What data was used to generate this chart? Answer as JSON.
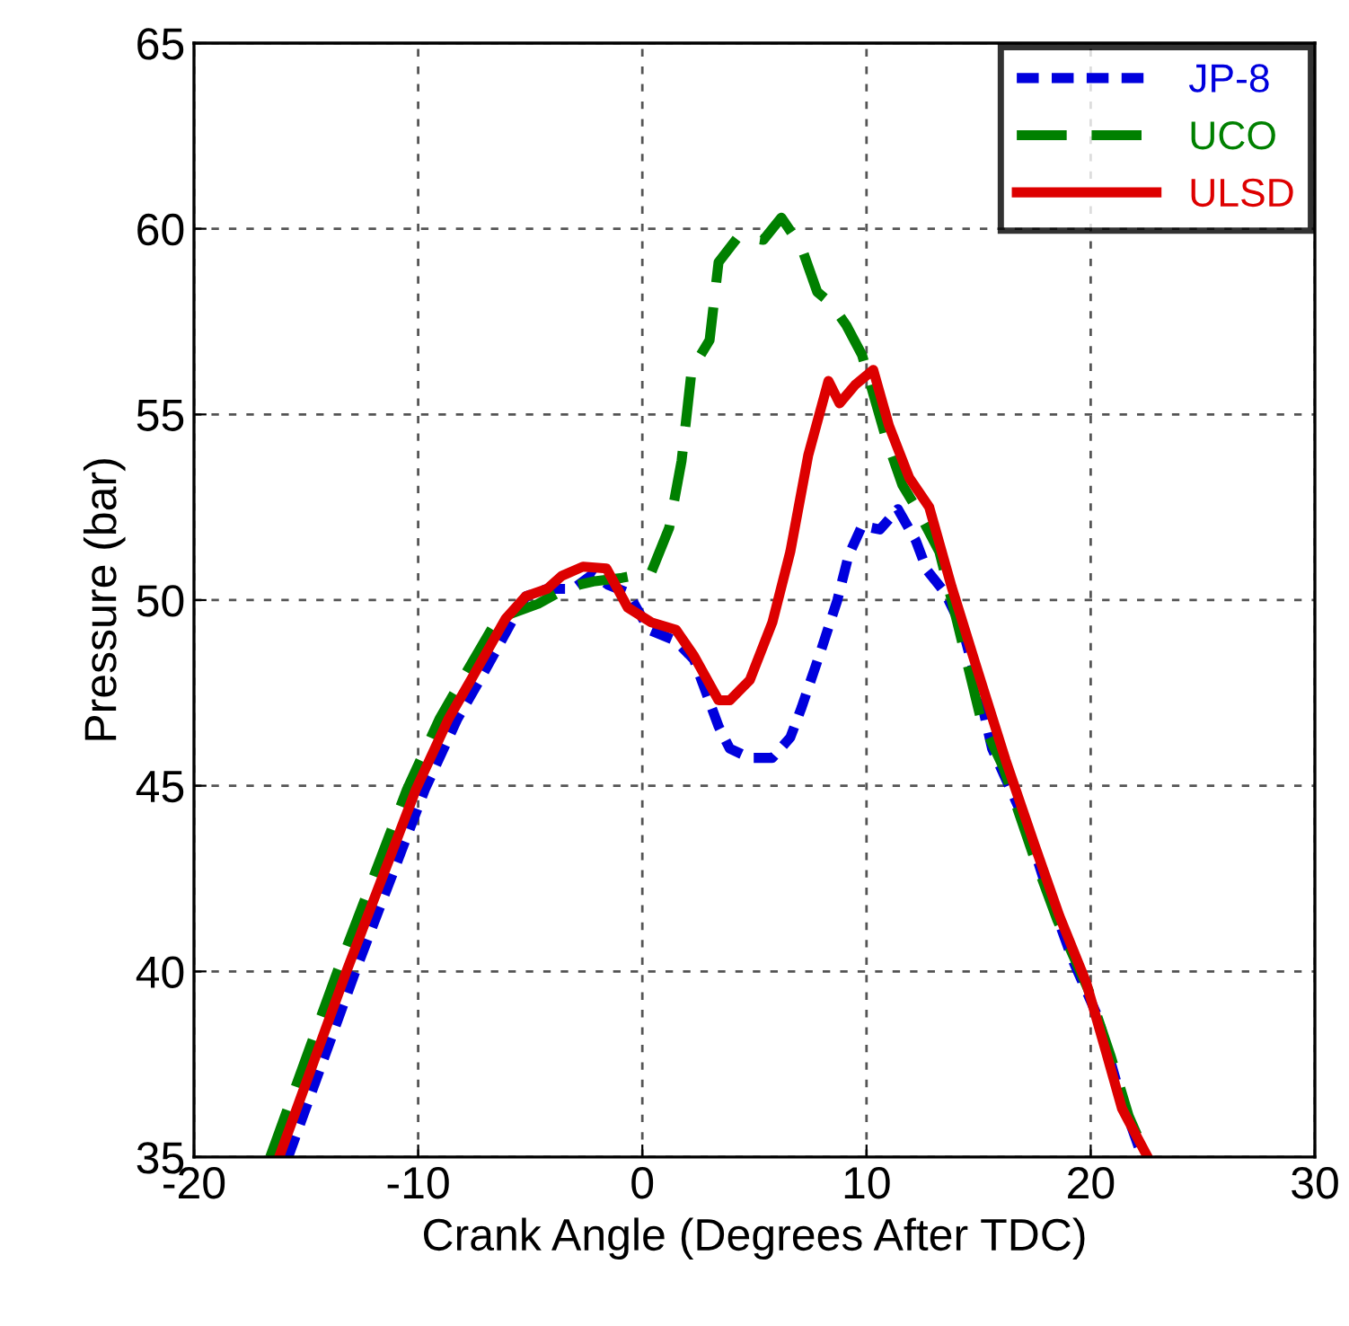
{
  "chart_data": {
    "type": "line",
    "xlabel": "Crank Angle (Degrees After TDC)",
    "ylabel": "Pressure (bar)",
    "xlim": [
      -20,
      30
    ],
    "xticks": [
      -20,
      -10,
      0,
      10,
      20,
      30
    ],
    "ylim": [
      35,
      65
    ],
    "yticks": [
      35,
      40,
      45,
      50,
      55,
      60,
      65
    ],
    "grid": true,
    "legend": "top right",
    "series": [
      {
        "name": "JP-8",
        "color": "#0000dd",
        "line_style": "dotted",
        "x": [
          -15.8,
          -12.8,
          -9.7,
          -8.25,
          -7.2,
          -5.75,
          -5.2,
          -4.25,
          -3.1,
          -2.2,
          -1.5,
          -0.65,
          0.3,
          1.5,
          2.3,
          3.4,
          3.9,
          4.8,
          5.8,
          6.6,
          7.1,
          8.0,
          8.7,
          9.2,
          9.8,
          10.6,
          11.4,
          12.2,
          12.7,
          13.5,
          14.3,
          15.0,
          15.6,
          17.1,
          18.0,
          19.2,
          20.3,
          21.3,
          22.3
        ],
        "values": [
          35,
          40,
          44.9,
          46.8,
          47.9,
          49.5,
          50.1,
          50.3,
          50.3,
          50.7,
          50.4,
          50.2,
          49.2,
          48.9,
          48.4,
          46.6,
          46.0,
          45.75,
          45.75,
          46.3,
          47.1,
          48.7,
          50.0,
          51.2,
          52.0,
          51.9,
          52.45,
          51.6,
          50.8,
          50.2,
          49.2,
          47.6,
          46.0,
          44.0,
          42.3,
          40.3,
          38.8,
          36.7,
          35
        ]
      },
      {
        "name": "UCO",
        "color": "#008000",
        "line_style": "dashed",
        "x": [
          -16.6,
          -13.6,
          -10.5,
          -9.05,
          -8.0,
          -6.45,
          -4.65,
          -3.3,
          -2.2,
          -0.9,
          0.4,
          1.2,
          1.75,
          2.2,
          3.0,
          3.4,
          4.3,
          5.4,
          6.2,
          7.1,
          7.8,
          8.4,
          9.1,
          9.8,
          10.4,
          10.85,
          11.6,
          12.3,
          13.25,
          14.05,
          15.1,
          16.1,
          17.4,
          18.5,
          19.9,
          20.9,
          21.7,
          22.5
        ],
        "values": [
          35,
          40,
          44.9,
          46.8,
          47.9,
          49.5,
          49.9,
          50.35,
          50.5,
          50.6,
          50.75,
          51.95,
          53.75,
          56.2,
          57.0,
          59.1,
          59.8,
          59.7,
          60.3,
          59.5,
          58.3,
          58.0,
          57.4,
          56.6,
          55.35,
          54.4,
          53.1,
          52.4,
          51.3,
          49.4,
          46.8,
          45.5,
          43.2,
          41.4,
          39.5,
          37.7,
          36.1,
          35
        ]
      },
      {
        "name": "ULSD",
        "color": "#dd0000",
        "line_style": "solid",
        "x": [
          -16.2,
          -13.2,
          -10.1,
          -8.65,
          -7.6,
          -6.1,
          -5.2,
          -4.25,
          -3.6,
          -2.65,
          -1.6,
          -0.65,
          0.4,
          1.5,
          2.3,
          3.4,
          3.9,
          4.8,
          5.8,
          6.6,
          7.4,
          8.3,
          8.8,
          9.5,
          10.3,
          11.0,
          11.9,
          12.8,
          13.8,
          14.85,
          16.2,
          17.5,
          18.6,
          19.8,
          20.7,
          21.4,
          22.5
        ],
        "values": [
          35,
          40,
          44.9,
          46.8,
          47.9,
          49.5,
          50.1,
          50.3,
          50.65,
          50.9,
          50.85,
          49.8,
          49.4,
          49.2,
          48.5,
          47.3,
          47.3,
          47.85,
          49.4,
          51.3,
          53.9,
          55.9,
          55.3,
          55.8,
          56.2,
          54.7,
          53.3,
          52.5,
          50.35,
          48.3,
          45.7,
          43.4,
          41.5,
          39.7,
          37.8,
          36.3,
          35.05
        ]
      }
    ]
  }
}
